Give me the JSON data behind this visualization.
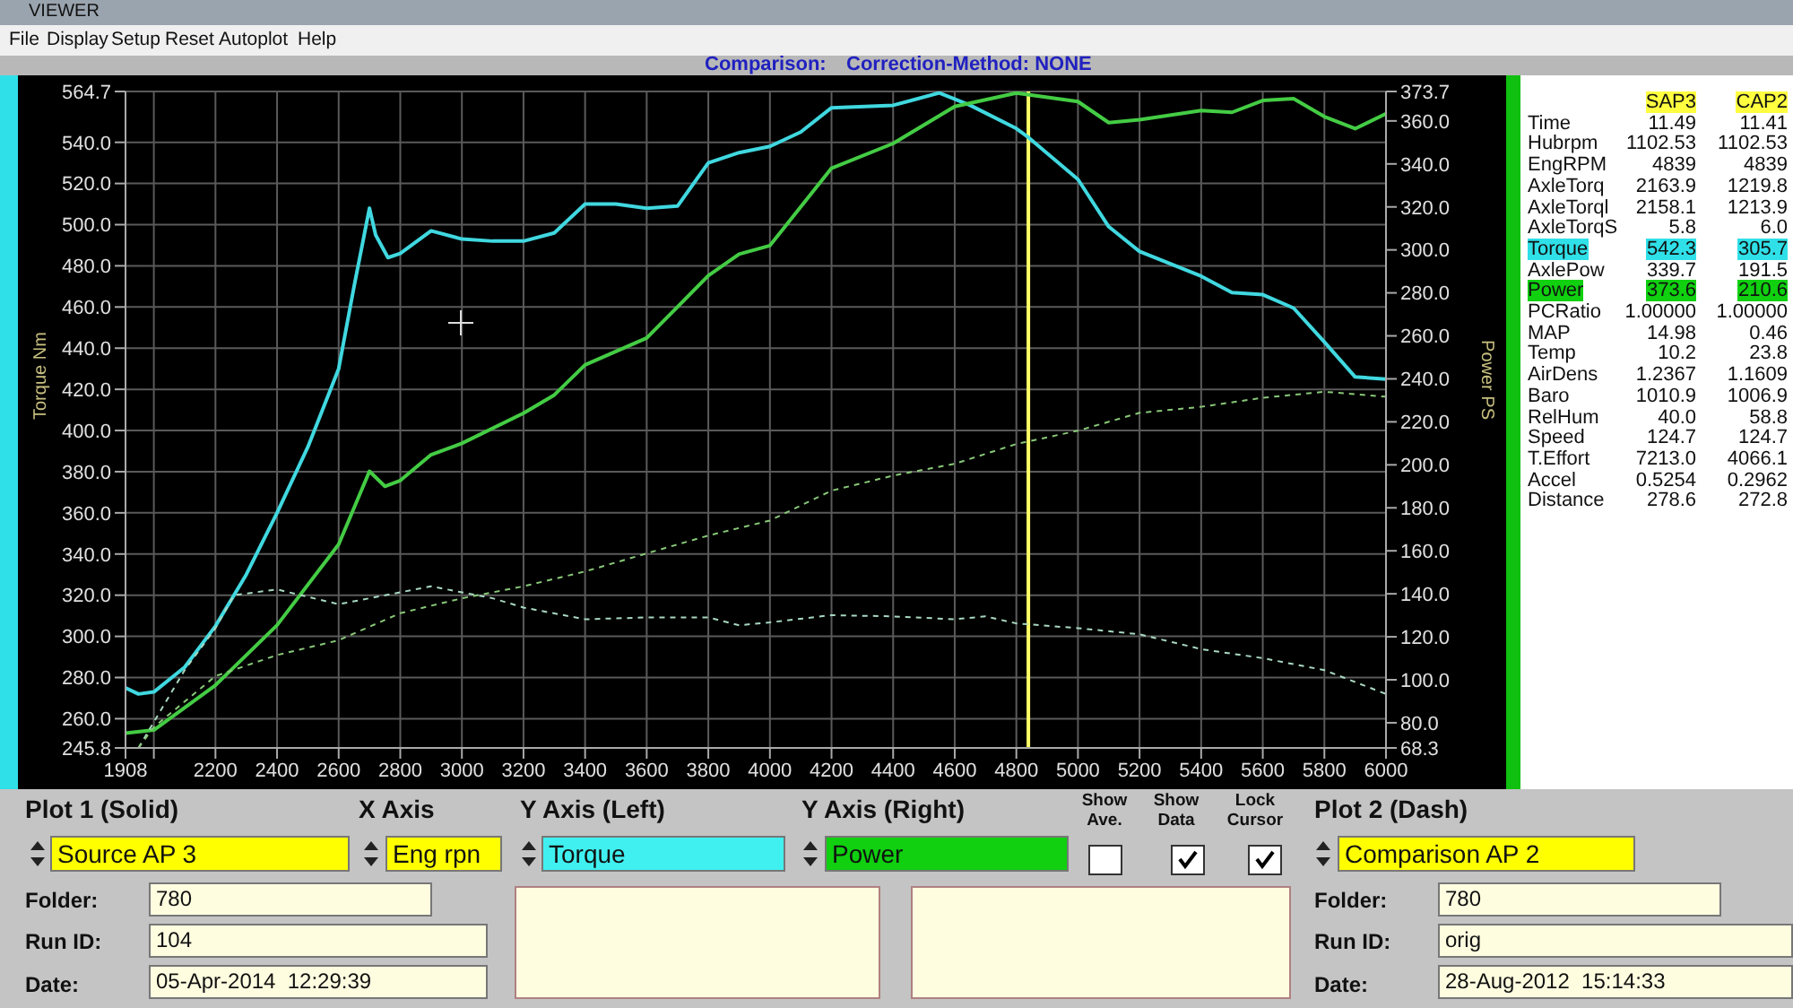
{
  "chart_data": [
    {
      "type": "other",
      "annotations": [
        "VIEWER",
        "File",
        "Display",
        "Setup",
        "Reset",
        "Autoplot",
        "Help"
      ]
    },
    {
      "type": "line",
      "xlabel": null,
      "ylabel": "Torque Nm",
      "y2label": "Power PS",
      "annotations": [
        "Comparison:",
        "Correction-Method: NONE"
      ],
      "xlim": [
        1908,
        6000
      ],
      "xticks": [
        1908,
        {
          "value": 2000,
          "label": null
        },
        2200,
        2400,
        2600,
        2800,
        3000,
        3200,
        3400,
        3600,
        3800,
        4000,
        4200,
        4400,
        4600,
        4800,
        5000,
        5200,
        5400,
        5600,
        5800,
        6000
      ],
      "ylim": [
        245.8,
        564.7
      ],
      "yticks": [
        245.8,
        {
          "value": 260,
          "label": "260.0"
        },
        {
          "value": 280,
          "label": "280.0"
        },
        {
          "value": 300,
          "label": "300.0"
        },
        {
          "value": 320,
          "label": "320.0"
        },
        {
          "value": 340,
          "label": "340.0"
        },
        {
          "value": 360,
          "label": "360.0"
        },
        {
          "value": 380,
          "label": "380.0"
        },
        {
          "value": 400,
          "label": "400.0"
        },
        {
          "value": 420,
          "label": "420.0"
        },
        {
          "value": 440,
          "label": "440.0"
        },
        {
          "value": 460,
          "label": "460.0"
        },
        {
          "value": 480,
          "label": "480.0"
        },
        {
          "value": 500,
          "label": "500.0"
        },
        {
          "value": 520,
          "label": "520.0"
        },
        {
          "value": 540,
          "label": "540.0"
        },
        564.7
      ],
      "y2lim": [
        68.3,
        373.7
      ],
      "y2ticks": [
        68.3,
        {
          "value": 80,
          "label": "80.0"
        },
        {
          "value": 100,
          "label": "100.0"
        },
        {
          "value": 120,
          "label": "120.0"
        },
        {
          "value": 140,
          "label": "140.0"
        },
        {
          "value": 160,
          "label": "160.0"
        },
        {
          "value": 180,
          "label": "180.0"
        },
        {
          "value": 200,
          "label": "200.0"
        },
        {
          "value": 220,
          "label": "220.0"
        },
        {
          "value": 240,
          "label": "240.0"
        },
        {
          "value": 260,
          "label": "260.0"
        },
        {
          "value": 280,
          "label": "280.0"
        },
        {
          "value": 300,
          "label": "300.0"
        },
        {
          "value": 320,
          "label": "320.0"
        },
        {
          "value": 340,
          "label": "340.0"
        },
        {
          "value": 360,
          "label": "360.0"
        },
        373.7
      ],
      "grid": true,
      "line_style": "solid",
      "ref_lines": [
        {
          "axis": "x",
          "value": 4839,
          "label": null,
          "color": "#ffff66"
        }
      ],
      "series": [
        {
          "color": "#40d8e0",
          "x": [
            1908,
            1950,
            2000,
            2100,
            2200,
            2300,
            2400,
            2500,
            2600,
            2650,
            2700,
            2720,
            2760,
            2800,
            2900,
            3000,
            3100,
            3200,
            3300,
            3400,
            3500,
            3600,
            3700,
            3800,
            3900,
            4000,
            4100,
            4200,
            4400,
            4550,
            4650,
            4800,
            4840,
            5000,
            5100,
            5200,
            5400,
            5500,
            5600,
            5700,
            5800,
            5900,
            6000
          ],
          "values": [
            275,
            272,
            273,
            285,
            305,
            330,
            360,
            392,
            430,
            470,
            508,
            495,
            484,
            486,
            497,
            493,
            492,
            492,
            496,
            510,
            510,
            508,
            509,
            530,
            535,
            538,
            545,
            556.8,
            558,
            564,
            558,
            546.7,
            542.3,
            522,
            499,
            487,
            475,
            467,
            466,
            459.5,
            443,
            426,
            425
          ]
        },
        {
          "color": "#44cc44",
          "axis": "y2",
          "x": [
            1908,
            2000,
            2200,
            2400,
            2600,
            2700,
            2750,
            2800,
            2900,
            3000,
            3200,
            3300,
            3400,
            3600,
            3800,
            3900,
            4000,
            4200,
            4400,
            4600,
            4800,
            5000,
            5100,
            5200,
            5400,
            5500,
            5600,
            5700,
            5800,
            5900,
            6000
          ],
          "values": [
            75.2,
            76.6,
            97.5,
            125.4,
            163,
            197,
            190,
            192.7,
            204.7,
            210,
            224,
            232.5,
            246.5,
            259,
            288,
            298,
            302,
            338,
            349.5,
            366.7,
            373,
            369,
            359.2,
            360.6,
            364.8,
            364,
            369.5,
            370.4,
            362,
            356.4,
            363.4
          ]
        },
        {
          "color": "#a8d8c0",
          "line_style": "dashed",
          "x": [
            1950,
            2100,
            2200,
            2260,
            2400,
            2600,
            2800,
            2900,
            3100,
            3200,
            3400,
            3600,
            3800,
            3900,
            4000,
            4200,
            4400,
            4600,
            4700,
            4800,
            5000,
            5200,
            5400,
            5600,
            5800,
            6000
          ],
          "values": [
            245.8,
            283.6,
            304,
            320,
            322.8,
            315.6,
            321.4,
            324.3,
            318.5,
            314,
            308.3,
            309.2,
            309.2,
            305.4,
            306.8,
            310.3,
            309.7,
            308.3,
            309.7,
            306.3,
            304,
            301,
            293.8,
            289.4,
            283.6,
            272
          ]
        },
        {
          "color": "#88c878",
          "axis": "y2",
          "line_style": "dashed",
          "x": [
            1950,
            2000,
            2200,
            2400,
            2600,
            2800,
            3000,
            3200,
            3400,
            3600,
            3800,
            4000,
            4200,
            4400,
            4600,
            4800,
            5000,
            5200,
            5400,
            5600,
            5800,
            6000
          ],
          "values": [
            68.3,
            78,
            101.7,
            111.5,
            118.4,
            131,
            137.9,
            143.5,
            150.4,
            158.8,
            167.1,
            174.1,
            188,
            195,
            200.5,
            209.7,
            215.9,
            224.2,
            227,
            231.2,
            234,
            231.7
          ]
        }
      ]
    },
    {
      "type": "other",
      "annotations": [
        "SAP3",
        "CAP2",
        "Time",
        "11.49",
        "11.41",
        "Hubrpm",
        "1102.53",
        "1102.53",
        "EngRPM",
        "4839",
        "4839",
        "AxleTorq",
        "2163.9",
        "1219.8",
        "AxleTorql",
        "2158.1",
        "1213.9",
        "AxleTorqS",
        "5.8",
        "6.0",
        "Torque",
        "542.3",
        "305.7",
        "AxlePow",
        "339.7",
        "191.5",
        "Power",
        "373.6",
        "210.6",
        "PCRatio",
        "1.00000",
        "1.00000",
        "MAP",
        "14.98",
        "0.46",
        "Temp",
        "10.2",
        "23.8",
        "AirDens",
        "1.2367",
        "1.1609",
        "Baro",
        "1010.9",
        "1006.9",
        "RelHum",
        "40.0",
        "58.8",
        "Speed",
        "124.7",
        "124.7",
        "T.Effort",
        "7213.0",
        "4066.1",
        "Accel",
        "0.5254",
        "0.2962",
        "Distance",
        "278.6",
        "272.8"
      ]
    },
    {
      "type": "other",
      "annotations": [
        "Plot 1 (Solid)",
        "X Axis",
        "Y Axis (Left)",
        "Y Axis (Right)",
        "Show Ave.",
        "Show Data",
        "Lock Cursor",
        "Plot 2 (Dash)",
        "Source AP 3",
        "Eng rpn",
        "Torque",
        "Power",
        "Comparison AP 2",
        "Folder:",
        "780",
        "Run ID:",
        "104",
        "Date:",
        "05-Apr-2014  12:29:39",
        "Folder:",
        "780",
        "Run ID:",
        "orig",
        "Date:",
        "28-Aug-2012  15:14:33"
      ]
    }
  ]
}
